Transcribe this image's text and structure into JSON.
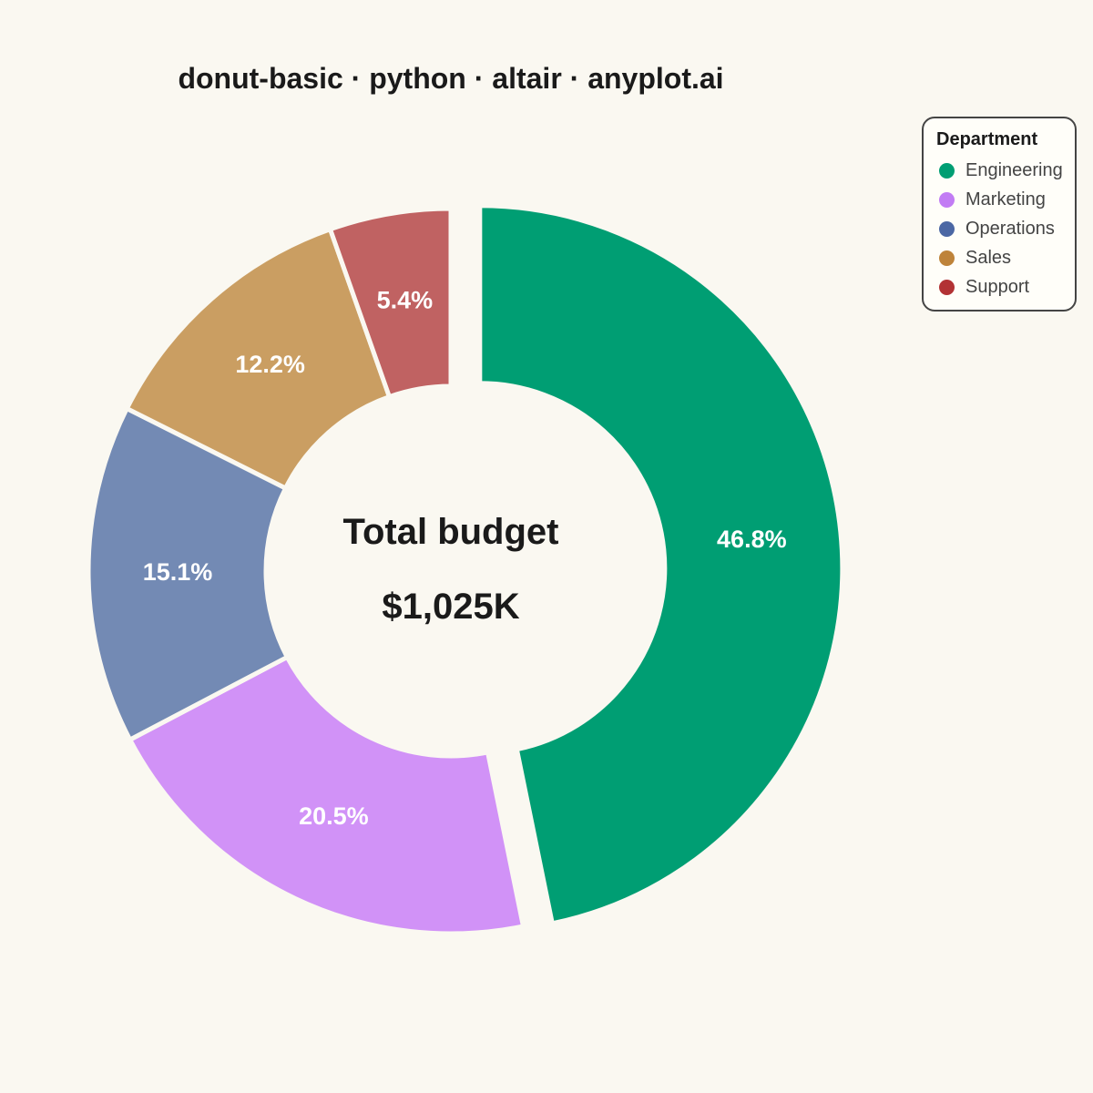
{
  "title": "donut-basic · python · altair · anyplot.ai",
  "center": {
    "label": "Total budget",
    "value": "$1,025K"
  },
  "legend": {
    "title": "Department"
  },
  "chart_data": {
    "type": "pie",
    "title": "donut-basic · python · altair · anyplot.ai",
    "legend_position": "top-right",
    "categories": [
      "Engineering",
      "Marketing",
      "Operations",
      "Sales",
      "Support"
    ],
    "percent": [
      46.8,
      20.5,
      15.1,
      12.2,
      5.4
    ],
    "percent_labels": [
      "46.8%",
      "20.5%",
      "15.1%",
      "12.2%",
      "5.4%"
    ],
    "colors": [
      "#009E73",
      "#D192F7",
      "#738AB4",
      "#CA9E62",
      "#C06262"
    ],
    "legend_colors": [
      "#009E73",
      "#C27CF4",
      "#4B67A4",
      "#BE833A",
      "#B23234"
    ],
    "exploded": [
      "Engineering"
    ],
    "total": "$1,025K"
  }
}
